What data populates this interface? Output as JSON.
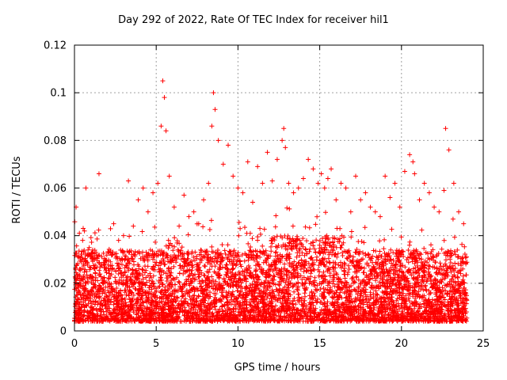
{
  "chart_data": {
    "type": "scatter",
    "title": "Day 292 of 2022, Rate Of TEC Index for receiver hil1",
    "xlabel": "GPS time / hours",
    "ylabel": "ROTI / TECUs",
    "xlim": [
      0,
      25
    ],
    "ylim": [
      0,
      0.12
    ],
    "xticks": [
      0,
      5,
      10,
      15,
      20,
      25
    ],
    "yticks": [
      0,
      0.02,
      0.04,
      0.06,
      0.08,
      0.1,
      0.12
    ],
    "ytick_labels": [
      "0",
      "0.02",
      "0.04",
      "0.06",
      "0.08",
      "0.1",
      "0.12"
    ],
    "grid": true,
    "marker": "+",
    "color": "#ff0000",
    "series": [
      {
        "name": "ROTI",
        "x": [
          0.1,
          0.3,
          0.5,
          0.7,
          0.9,
          1.2,
          1.5,
          1.8,
          2.1,
          2.4,
          2.7,
          3.0,
          3.3,
          3.6,
          3.9,
          4.2,
          4.5,
          4.8,
          5.1,
          5.3,
          5.4,
          5.5,
          5.6,
          5.8,
          6.1,
          6.4,
          6.7,
          7.0,
          7.3,
          7.6,
          7.9,
          8.2,
          8.4,
          8.5,
          8.6,
          8.8,
          9.1,
          9.4,
          9.7,
          10.0,
          10.3,
          10.6,
          10.9,
          11.2,
          11.5,
          11.8,
          12.1,
          12.4,
          12.7,
          12.8,
          12.9,
          13.1,
          13.4,
          13.7,
          14.0,
          14.3,
          14.6,
          14.9,
          15.1,
          15.3,
          15.5,
          15.7,
          16.0,
          16.3,
          16.6,
          16.9,
          17.2,
          17.5,
          17.8,
          18.1,
          18.4,
          18.7,
          19.0,
          19.3,
          19.6,
          19.9,
          20.2,
          20.5,
          20.7,
          20.8,
          21.1,
          21.4,
          21.7,
          22.0,
          22.3,
          22.6,
          22.7,
          22.9,
          23.2,
          23.5,
          23.8
        ],
        "y": [
          0.052,
          0.041,
          0.038,
          0.06,
          0.035,
          0.03,
          0.066,
          0.028,
          0.033,
          0.045,
          0.038,
          0.04,
          0.063,
          0.044,
          0.055,
          0.06,
          0.05,
          0.058,
          0.062,
          0.086,
          0.105,
          0.098,
          0.084,
          0.065,
          0.052,
          0.044,
          0.057,
          0.048,
          0.05,
          0.045,
          0.055,
          0.062,
          0.086,
          0.1,
          0.093,
          0.08,
          0.07,
          0.078,
          0.065,
          0.06,
          0.058,
          0.071,
          0.054,
          0.069,
          0.062,
          0.075,
          0.063,
          0.072,
          0.08,
          0.085,
          0.077,
          0.062,
          0.058,
          0.06,
          0.064,
          0.072,
          0.068,
          0.062,
          0.066,
          0.06,
          0.064,
          0.068,
          0.055,
          0.062,
          0.06,
          0.05,
          0.065,
          0.055,
          0.058,
          0.052,
          0.05,
          0.048,
          0.065,
          0.056,
          0.062,
          0.052,
          0.067,
          0.074,
          0.071,
          0.066,
          0.055,
          0.062,
          0.058,
          0.052,
          0.05,
          0.059,
          0.085,
          0.076,
          0.062,
          0.05,
          0.045
        ]
      }
    ]
  }
}
